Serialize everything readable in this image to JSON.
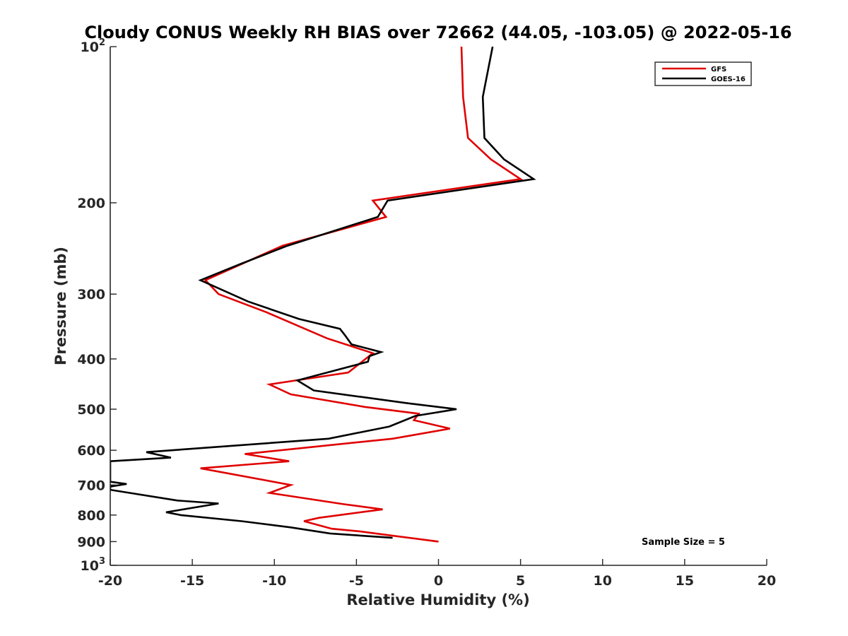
{
  "chart_data": {
    "type": "line",
    "title": "Cloudy CONUS Weekly RH BIAS over 72662 (44.05, -103.05) @ 2022-05-16",
    "xlabel": "Relative Humidity (%)",
    "ylabel": "Pressure (mb)",
    "xlim": [
      -20,
      20
    ],
    "ylim": [
      100,
      1000
    ],
    "yscale": "log",
    "y_reversed": true,
    "x_ticks": [
      -20,
      -15,
      -10,
      -5,
      0,
      5,
      10,
      15,
      20
    ],
    "x_tick_labels": [
      "-20",
      "-15",
      "-10",
      "-5",
      "0",
      "5",
      "10",
      "15",
      "20"
    ],
    "y_ticks": [
      100,
      200,
      300,
      400,
      500,
      600,
      700,
      800,
      900,
      1000
    ],
    "y_tick_labels": [
      {
        "base": "10",
        "exp": "2"
      },
      {
        "base": "200",
        "exp": ""
      },
      {
        "base": "300",
        "exp": ""
      },
      {
        "base": "400",
        "exp": ""
      },
      {
        "base": "500",
        "exp": ""
      },
      {
        "base": "600",
        "exp": ""
      },
      {
        "base": "700",
        "exp": ""
      },
      {
        "base": "800",
        "exp": ""
      },
      {
        "base": "900",
        "exp": ""
      },
      {
        "base": "10",
        "exp": "3"
      }
    ],
    "grid": false,
    "legend_position": "top-right",
    "annotation": "Sample Size = 5",
    "series": [
      {
        "name": "GFS",
        "color": "#e00000",
        "points": [
          [
            1.4,
            100
          ],
          [
            1.5,
            125
          ],
          [
            1.8,
            150
          ],
          [
            3.2,
            165
          ],
          [
            5.0,
            180
          ],
          [
            -4.0,
            198
          ],
          [
            -3.2,
            213
          ],
          [
            -9.5,
            242
          ],
          [
            -14.2,
            282
          ],
          [
            -13.4,
            300
          ],
          [
            -10.5,
            325
          ],
          [
            -6.8,
            365
          ],
          [
            -4.0,
            390
          ],
          [
            -5.5,
            425
          ],
          [
            -10.3,
            448
          ],
          [
            -9.0,
            468
          ],
          [
            -4.5,
            495
          ],
          [
            -1.2,
            510
          ],
          [
            -1.5,
            525
          ],
          [
            0.7,
            545
          ],
          [
            -2.8,
            570
          ],
          [
            -11.8,
            610
          ],
          [
            -9.1,
            630
          ],
          [
            -14.5,
            650
          ],
          [
            -9.0,
            700
          ],
          [
            -10.3,
            725
          ],
          [
            -5.8,
            762
          ],
          [
            -3.4,
            780
          ],
          [
            -7.3,
            810
          ],
          [
            -8.2,
            822
          ],
          [
            -6.5,
            850
          ],
          [
            -4.8,
            860
          ],
          [
            -3.0,
            875
          ],
          [
            0.0,
            900
          ]
        ]
      },
      {
        "name": "GOES-16",
        "color": "#000000",
        "points": [
          [
            3.3,
            100
          ],
          [
            2.7,
            125
          ],
          [
            2.8,
            150
          ],
          [
            4.0,
            165
          ],
          [
            5.8,
            180
          ],
          [
            -3.1,
            198
          ],
          [
            -3.7,
            213
          ],
          [
            -9.2,
            242
          ],
          [
            -12.0,
            262
          ],
          [
            -14.5,
            282
          ],
          [
            -11.6,
            310
          ],
          [
            -8.5,
            335
          ],
          [
            -6.0,
            350
          ],
          [
            -5.7,
            360
          ],
          [
            -5.3,
            375
          ],
          [
            -3.5,
            388
          ],
          [
            -4.2,
            395
          ],
          [
            -4.3,
            405
          ],
          [
            -8.6,
            440
          ],
          [
            -7.6,
            460
          ],
          [
            -1.9,
            487
          ],
          [
            1.1,
            500
          ],
          [
            -1.4,
            515
          ],
          [
            -3.0,
            540
          ],
          [
            -6.7,
            570
          ],
          [
            -17.8,
            605
          ],
          [
            -16.3,
            620
          ],
          [
            -20,
            630
          ],
          [
            -20,
            690
          ],
          [
            -19.0,
            697
          ],
          [
            -20,
            705
          ],
          [
            -20,
            715
          ],
          [
            -15.9,
            750
          ],
          [
            -13.4,
            760
          ],
          [
            -16.6,
            790
          ],
          [
            -15.7,
            800
          ],
          [
            -12.0,
            822
          ],
          [
            -9.0,
            845
          ],
          [
            -6.6,
            868
          ],
          [
            -2.8,
            885
          ]
        ]
      }
    ]
  }
}
